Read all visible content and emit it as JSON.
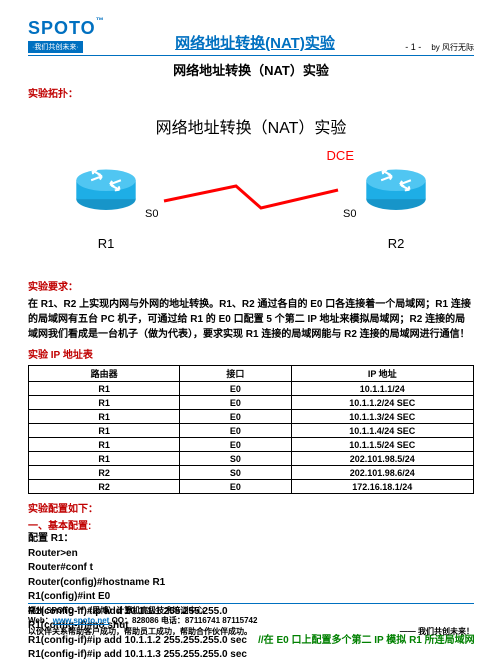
{
  "logo": {
    "text": "SPOTO",
    "tm": "™",
    "sub": "·我们共创未来·"
  },
  "header": {
    "title": "网络地址转换(NAT)实验",
    "page": "- 1 -",
    "by": "by 风行无际"
  },
  "subtitle": "网络地址转换（NAT）实验",
  "sections": {
    "topology_label": "实验拓扑：",
    "diagram_title": "网络地址转换（NAT）实验",
    "requirement_label": "实验要求：",
    "ip_table_label": "实验 IP 地址表",
    "config_label": "实验配置如下：",
    "basic_label": "一、基本配置:",
    "cfg_r1_label": "配置 R1："
  },
  "diagram": {
    "router_color": "#1eaee6",
    "link_color": "#ff0000",
    "dce": "DCE",
    "r1": {
      "name": "R1",
      "iface": "S0"
    },
    "r2": {
      "name": "R2",
      "iface": "S0"
    }
  },
  "requirement_text": "在 R1、R2 上实现内网与外网的地址转换。R1、R2 通过各自的 E0 口各连接着一个局域网；R1 连接的局域网有五台 PC 机子，可通过给 R1 的 E0 口配置 5 个第二 IP 地址来模拟局域网；R2 连接的局域网我们看成是一台机子（做为代表），要求实现 R1 连接的局域网能与 R2 连接的局域网进行通信！",
  "ip_table": {
    "columns": [
      "路由器",
      "接口",
      "IP 地址"
    ],
    "rows": [
      [
        "R1",
        "E0",
        "10.1.1.1/24"
      ],
      [
        "R1",
        "E0",
        "10.1.1.2/24 SEC"
      ],
      [
        "R1",
        "E0",
        "10.1.1.3/24 SEC"
      ],
      [
        "R1",
        "E0",
        "10.1.1.4/24 SEC"
      ],
      [
        "R1",
        "E0",
        "10.1.1.5/24 SEC"
      ],
      [
        "R1",
        "S0",
        "202.101.98.5/24"
      ],
      [
        "R2",
        "S0",
        "202.101.98.6/24"
      ],
      [
        "R2",
        "E0",
        "172.16.18.1/24"
      ]
    ],
    "col_widths": [
      "34%",
      "25%",
      "41%"
    ]
  },
  "config_lines": [
    "Router>en",
    "Router#conf t",
    "Router(config)#hostname R1",
    "R1(config)#int E0",
    "R1(config-if)#ip add   10.1.1.1   255.255.255.0",
    "R1(config-if)#no shut"
  ],
  "config_line_comment": {
    "cmd": "R1(config-if)#ip add   10.1.1.2   255.255.255.0 sec",
    "comment": "//在 E0 口上配置多个第二 IP 模拟 R1 所连局域网"
  },
  "config_line_last": "R1(config-if)#ip add   10.1.1.3   255.255.255.0 sec",
  "footer": {
    "line1a": "福州 SPOTO ™（思博）计算机高级技术培训中心",
    "line2a": "Web：",
    "line2b": "www.spoto.net",
    "line2c": "   QQ：828086   电话：87116741  87115742",
    "line3": "以伙伴关系帮助客户成功，帮助员工成功，帮助合作伙伴成功。",
    "motto": "—— 我们共创未来！"
  },
  "colors": {
    "brand": "#0070c0",
    "red": "#c00000",
    "link_red": "#ff0000",
    "green": "#008000"
  }
}
